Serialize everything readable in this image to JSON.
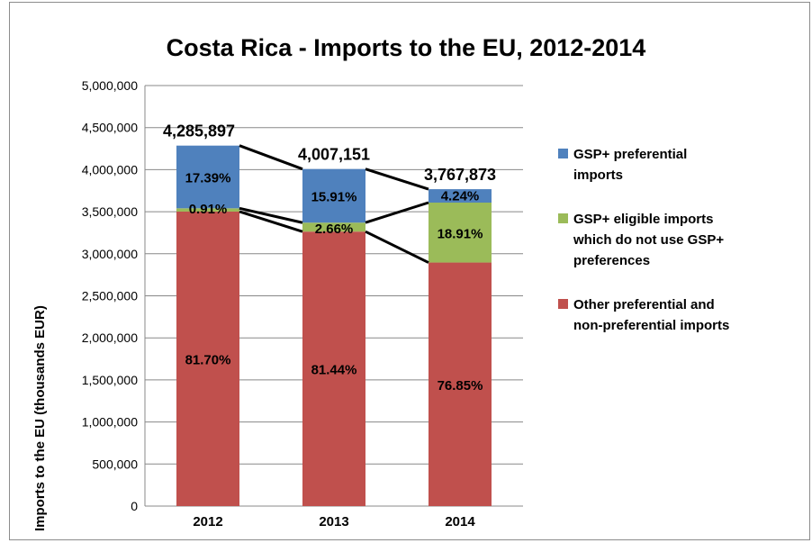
{
  "chart_data": {
    "type": "bar",
    "stacked": true,
    "title": "Costa Rica - Imports to the EU, 2012-2014",
    "ylabel": "Imports to the EU (thousands EUR)",
    "xlabel": "",
    "ylim": [
      0,
      5000000
    ],
    "yticks": [
      "0",
      "500,000",
      "1,000,000",
      "1,500,000",
      "2,000,000",
      "2,500,000",
      "3,000,000",
      "3,500,000",
      "4,000,000",
      "4,500,000",
      "5,000,000"
    ],
    "ytick_values": [
      0,
      500000,
      1000000,
      1500000,
      2000000,
      2500000,
      3000000,
      3500000,
      4000000,
      4500000,
      5000000
    ],
    "categories": [
      "2012",
      "2013",
      "2014"
    ],
    "totals": [
      4285897,
      4007151,
      3767873
    ],
    "total_labels": [
      "4,285,897",
      "4,007,151",
      "3,767,873"
    ],
    "series": [
      {
        "name": "Other preferential and non-preferential imports",
        "color": "#c0504d",
        "percent_labels": [
          "81.70%",
          "81.44%",
          "76.85%"
        ],
        "percents": [
          81.7,
          81.44,
          76.85
        ]
      },
      {
        "name": "GSP+ eligible imports which do not use GSP+ preferences",
        "color": "#9bbb59",
        "percent_labels": [
          "0.91%",
          "2.66%",
          "18.91%"
        ],
        "percents": [
          0.91,
          2.66,
          18.91
        ]
      },
      {
        "name": "GSP+ preferential imports",
        "color": "#4f81bd",
        "percent_labels": [
          "17.39%",
          "15.91%",
          "4.24%"
        ],
        "percents": [
          17.39,
          15.91,
          4.24
        ]
      }
    ],
    "grid": true,
    "legend_position": "right",
    "series_lines": true
  },
  "legend": [
    {
      "lines": [
        "GSP+ preferential",
        "imports"
      ],
      "color": "#4f81bd"
    },
    {
      "lines": [
        "GSP+ eligible imports",
        "which do not use GSP+",
        "preferences"
      ],
      "color": "#9bbb59"
    },
    {
      "lines": [
        "Other preferential and",
        "non-preferential imports"
      ],
      "color": "#c0504d"
    }
  ]
}
